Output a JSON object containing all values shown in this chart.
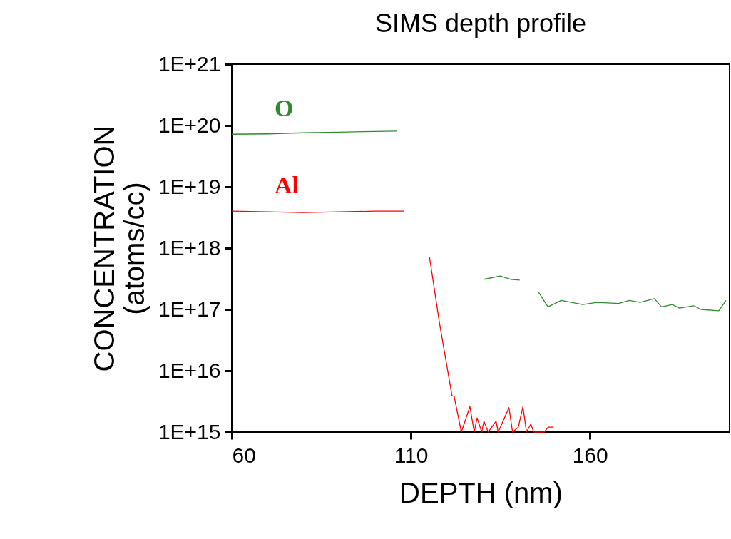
{
  "chart_data": {
    "type": "line",
    "title": "SIMS depth profile",
    "xlabel": "DEPTH (nm)",
    "ylabel": "CONCENTRATION\n(atoms/cc)",
    "log": "y",
    "xlim": [
      60,
      199
    ],
    "xticks": [
      60,
      110,
      160
    ],
    "ylim": [
      1000000000000000.0,
      1e+21
    ],
    "yticks": [
      {
        "value": 1000000000000000.0,
        "label": "1E+15"
      },
      {
        "value": 1e+16,
        "label": "1E+16"
      },
      {
        "value": 1e+17,
        "label": "1E+17"
      },
      {
        "value": 1e+18,
        "label": "1E+18"
      },
      {
        "value": 1e+19,
        "label": "1E+19"
      },
      {
        "value": 1e+20,
        "label": "1E+20"
      },
      {
        "value": 1e+21,
        "label": "1E+21"
      }
    ],
    "grid": false,
    "line_style": "solid",
    "marker": "none",
    "series": [
      {
        "name": "O",
        "color": "#2e8b2e",
        "x": [
          60,
          70,
          80,
          90,
          100,
          106,
          107,
          130.4,
          135,
          137.8,
          140.4,
          141,
          145.7,
          148.3,
          152,
          158,
          162,
          168,
          171,
          174,
          178,
          180,
          183,
          185,
          189,
          191,
          196,
          198
        ],
        "values": [
          7.2e+19,
          7.3e+19,
          7.6e+19,
          7.8e+19,
          8e+19,
          8.1e+19,
          null,
          3.1e+17,
          3.5e+17,
          3.1e+17,
          3e+17,
          null,
          1.9e+17,
          1.1e+17,
          1.4e+17,
          1.2e+17,
          1.3e+17,
          1.25e+17,
          1.4e+17,
          1.3e+17,
          1.5e+17,
          1.1e+17,
          1.2e+17,
          1.05e+17,
          1.15e+17,
          1e+17,
          9.5e+16,
          1.4e+17
        ]
      },
      {
        "name": "Al",
        "color": "#ff0000",
        "x": [
          60,
          70,
          80,
          90,
          100,
          108,
          109,
          115.2,
          118,
          121.5,
          122.1,
          123.5,
          124.1,
          126.5,
          127.7,
          128.5,
          129.8,
          130.4,
          131.6,
          133.8,
          134.4,
          137.4,
          138.4,
          140,
          141.3,
          142.3,
          143.5,
          144.3,
          147.3,
          148.3,
          149.9
        ],
        "values": [
          4e+18,
          3.9e+18,
          3.8e+18,
          3.9e+18,
          4e+18,
          4e+18,
          null,
          7.2e+17,
          6e+16,
          3900000000000000.0,
          3800000000000000.0,
          1500000000000000.0,
          1000000000000000.0,
          2600000000000000.0,
          1000000000000000.0,
          1700000000000000.0,
          1000000000000000.0,
          1500000000000000.0,
          1000000000000000.0,
          1500000000000000.0,
          1000000000000000.0,
          2500000000000000.0,
          1000000000000000.0,
          1200000000000000.0,
          2600000000000000.0,
          1000000000000000.0,
          1350000000000000.0,
          1000000000000000.0,
          1000000000000000.0,
          1200000000000000.0,
          1200000000000000.0
        ]
      }
    ]
  }
}
